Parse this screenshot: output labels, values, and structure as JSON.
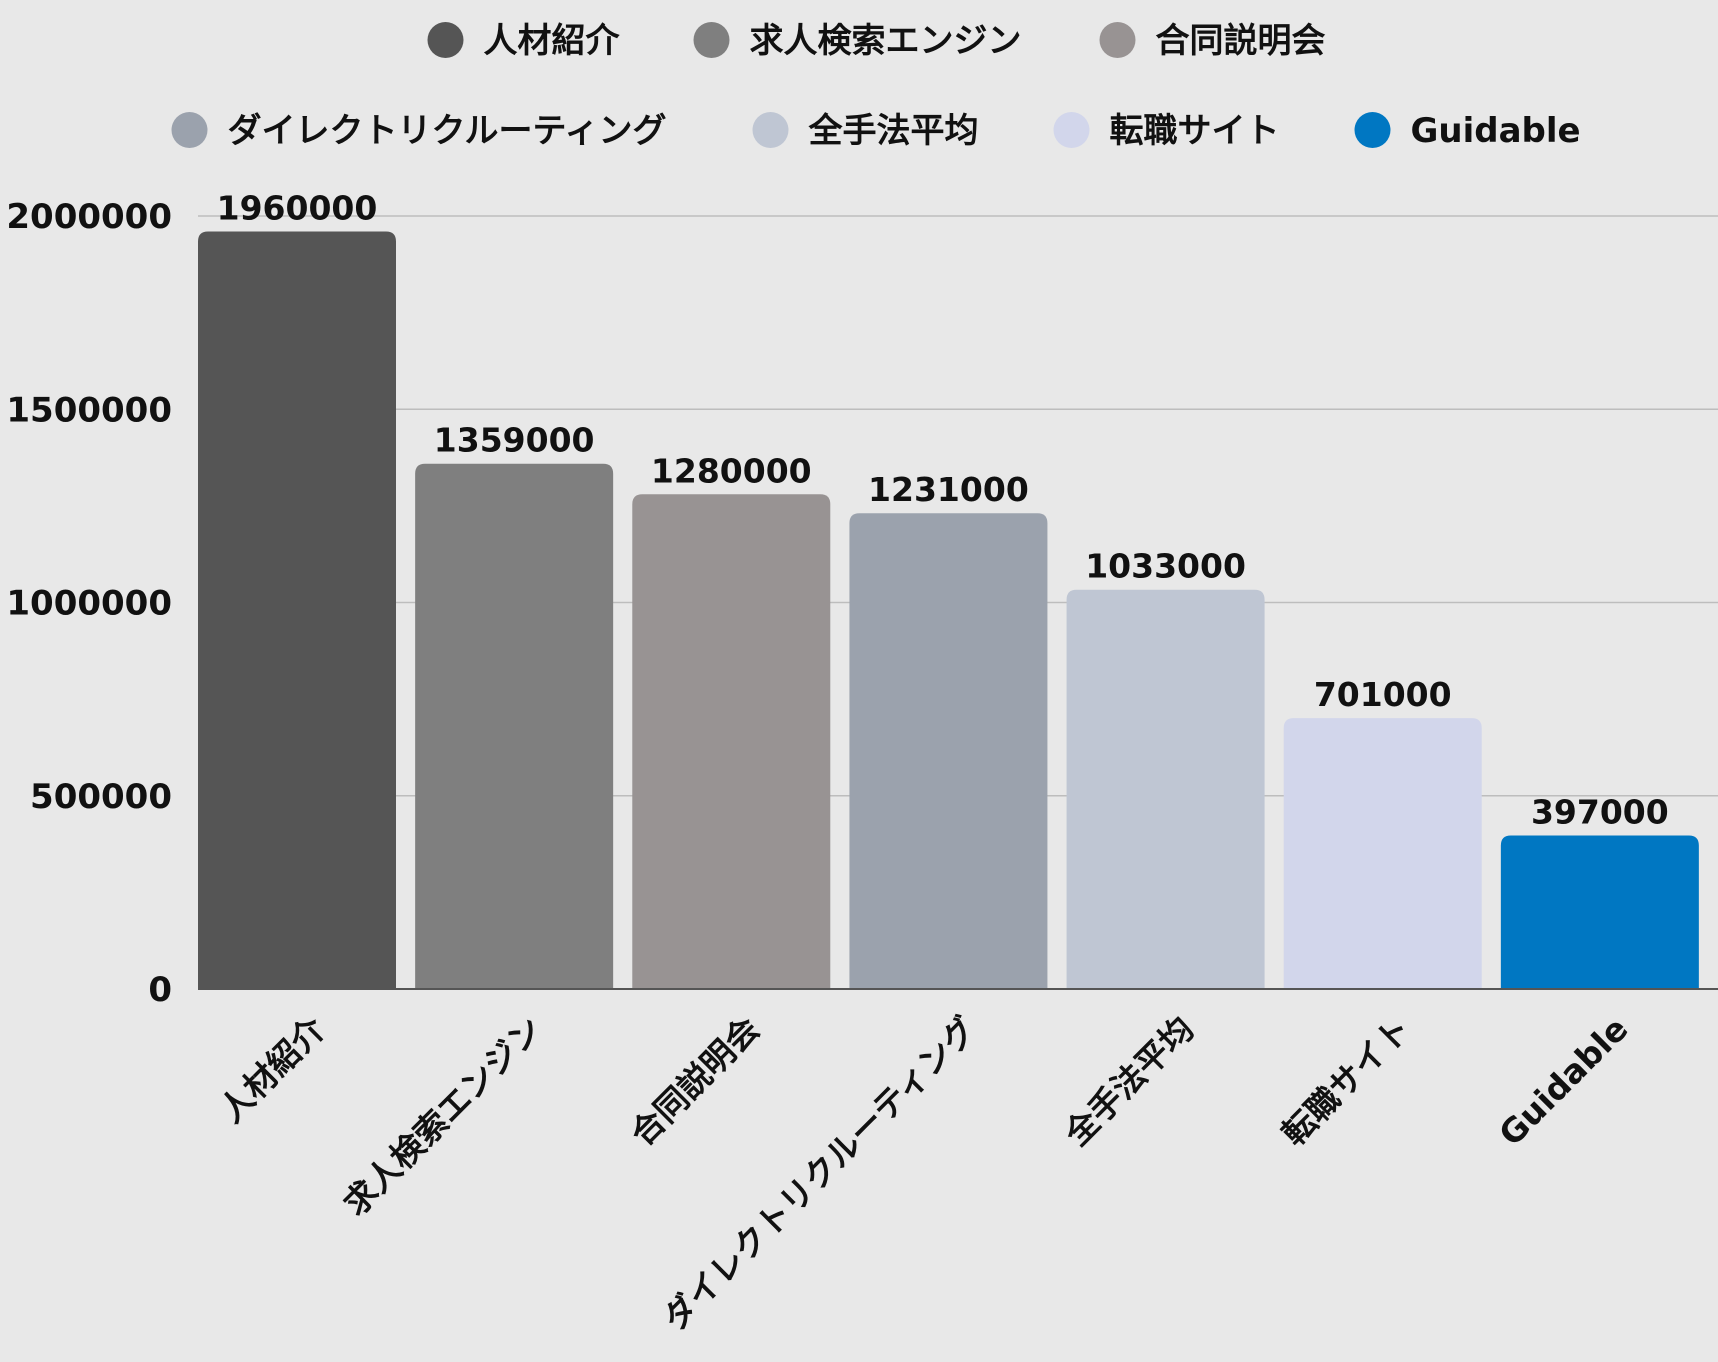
{
  "chart_data": {
    "type": "bar",
    "categories": [
      "人材紹介",
      "求人検索エンジン",
      "合同説明会",
      "ダイレクトリクルーティング",
      "全手法平均",
      "転職サイト",
      "Guidable"
    ],
    "values": [
      1960000,
      1359000,
      1280000,
      1231000,
      1033000,
      701000,
      397000
    ],
    "colors": [
      "#555555",
      "#7f7f7f",
      "#989393",
      "#9ba2ad",
      "#bfc6d3",
      "#d2d6eb",
      "#0077c2"
    ],
    "title": "",
    "xlabel": "",
    "ylabel": "",
    "ylim": [
      0,
      2000000
    ],
    "yticks": [
      0,
      500000,
      1000000,
      1500000,
      2000000
    ],
    "ytick_labels": [
      "0",
      "500000",
      "1000000",
      "1500000",
      "2000000"
    ],
    "value_labels": [
      "1960000",
      "1359000",
      "1280000",
      "1231000",
      "1033000",
      "701000",
      "397000"
    ],
    "grid": true,
    "legend_position": "top"
  }
}
